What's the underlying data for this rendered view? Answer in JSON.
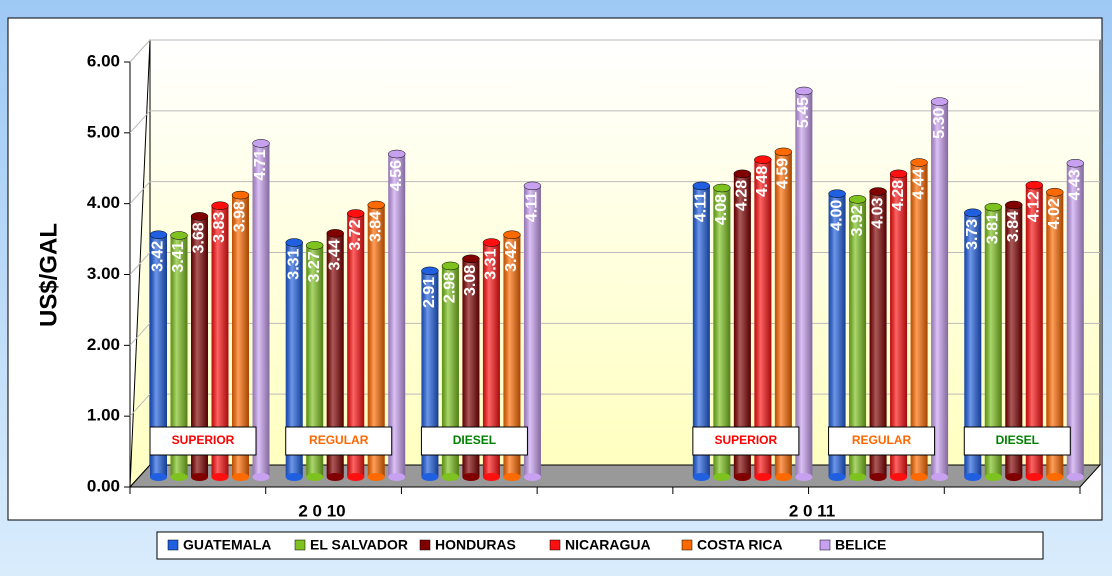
{
  "chart_data": {
    "type": "bar",
    "y_axis_label": "US$/GAL",
    "categories": [
      "SUPERIOR",
      "REGULAR",
      "DIESEL",
      null,
      "SUPERIOR",
      "REGULAR",
      "DIESEL"
    ],
    "category_colors": [
      "#ff0000",
      "#ff6600",
      "#008000",
      null,
      "#ff0000",
      "#ff6600",
      "#008000"
    ],
    "group_labels": [
      "2 0 10",
      "2 0 11"
    ],
    "series": [
      {
        "name": "GUATEMALA",
        "color": "#1f5fe0",
        "values": [
          3.42,
          3.31,
          2.91,
          null,
          4.11,
          4.0,
          3.73
        ],
        "value_labels": [
          "3.42",
          "3.31",
          "2.91",
          null,
          "4.11",
          "4.00",
          "3.73"
        ]
      },
      {
        "name": "EL SALVADOR",
        "color": "#7dc21e",
        "values": [
          3.41,
          3.27,
          2.98,
          null,
          4.08,
          3.92,
          3.81
        ],
        "value_labels": [
          "3.41",
          "3.27",
          "2.98",
          null,
          "4.08",
          "3.92",
          "3.81"
        ]
      },
      {
        "name": "HONDURAS",
        "color": "#800000",
        "values": [
          3.68,
          3.44,
          3.08,
          null,
          4.28,
          4.03,
          3.84
        ],
        "value_labels": [
          "3.68",
          "3.44",
          "3.08",
          null,
          "4.28",
          "4.03",
          "3.84"
        ]
      },
      {
        "name": "NICARAGUA",
        "color": "#ff1010",
        "values": [
          3.83,
          3.72,
          3.31,
          null,
          4.48,
          4.28,
          4.12
        ],
        "value_labels": [
          "3.83",
          "3.72",
          "3.31",
          null,
          "4.48",
          "4.28",
          "4.12"
        ]
      },
      {
        "name": "COSTA RICA",
        "color": "#ff6a00",
        "values": [
          3.98,
          3.84,
          3.42,
          null,
          4.59,
          4.44,
          4.02
        ],
        "value_labels": [
          "3.98",
          "3.84",
          "3.42",
          null,
          "4.59",
          "4.44",
          "4.02"
        ]
      },
      {
        "name": "BELICE",
        "color": "#c8a0f0",
        "values": [
          4.71,
          4.56,
          4.11,
          null,
          5.45,
          5.3,
          4.43
        ],
        "value_labels": [
          "4.71",
          "4.56",
          "4.11",
          null,
          "5.45",
          "5.30",
          "4.43"
        ]
      }
    ],
    "ylim": [
      0,
      6
    ],
    "yticks": [
      {
        "value": 0,
        "label": "0.00"
      },
      {
        "value": 1,
        "label": "1.00"
      },
      {
        "value": 2,
        "label": "2.00"
      },
      {
        "value": 3,
        "label": "3.00"
      },
      {
        "value": 4,
        "label": "4.00"
      },
      {
        "value": 5,
        "label": "5.00"
      },
      {
        "value": 6,
        "label": "6.00"
      }
    ],
    "grid": true
  }
}
